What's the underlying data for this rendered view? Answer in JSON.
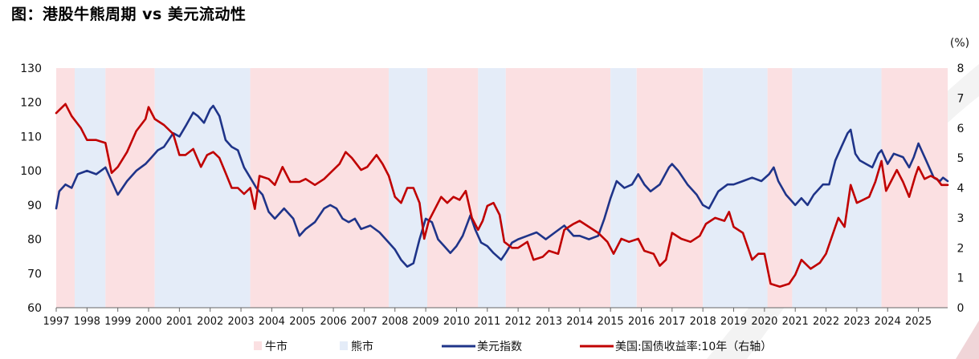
{
  "title": "图：港股牛熊周期 vs 美元流动性",
  "chart_data": {
    "type": "line",
    "right_unit": "(%)",
    "x_ticks": [
      "1997",
      "1998",
      "1999",
      "2000",
      "2001",
      "2002",
      "2003",
      "2004",
      "2005",
      "2006",
      "2007",
      "2008",
      "2009",
      "2010",
      "2011",
      "2012",
      "2013",
      "2014",
      "2015",
      "2016",
      "2017",
      "2018",
      "2019",
      "2020",
      "2021",
      "2022",
      "2023",
      "2024",
      "2025"
    ],
    "x_range": [
      1997.0,
      2025.95
    ],
    "left_axis": {
      "ticks": [
        60,
        70,
        80,
        90,
        100,
        110,
        120,
        130
      ],
      "range": [
        60,
        130
      ]
    },
    "right_axis": {
      "ticks": [
        0,
        1,
        2,
        3,
        4,
        5,
        6,
        7,
        8
      ],
      "range": [
        0,
        8
      ]
    },
    "regimes": [
      {
        "kind": "bull",
        "start": 1997.0,
        "end": 1997.6
      },
      {
        "kind": "bear",
        "start": 1997.6,
        "end": 1998.6
      },
      {
        "kind": "bull",
        "start": 1998.6,
        "end": 2000.2
      },
      {
        "kind": "bear",
        "start": 2000.2,
        "end": 2003.3
      },
      {
        "kind": "bull",
        "start": 2003.3,
        "end": 2007.8
      },
      {
        "kind": "bear",
        "start": 2007.8,
        "end": 2009.05
      },
      {
        "kind": "bull",
        "start": 2009.05,
        "end": 2010.7
      },
      {
        "kind": "bear",
        "start": 2010.7,
        "end": 2011.6
      },
      {
        "kind": "bull",
        "start": 2011.6,
        "end": 2015.0
      },
      {
        "kind": "bear",
        "start": 2015.0,
        "end": 2015.85
      },
      {
        "kind": "bull",
        "start": 2015.85,
        "end": 2018.0
      },
      {
        "kind": "bear",
        "start": 2018.0,
        "end": 2020.1
      },
      {
        "kind": "bull",
        "start": 2020.1,
        "end": 2020.9
      },
      {
        "kind": "bear",
        "start": 2020.9,
        "end": 2023.8
      },
      {
        "kind": "bull",
        "start": 2023.8,
        "end": 2025.95
      }
    ],
    "series": [
      {
        "name": "美元指数",
        "axis": "left",
        "color": "#1f3489",
        "points": [
          [
            1997.0,
            89
          ],
          [
            1997.1,
            94
          ],
          [
            1997.3,
            96
          ],
          [
            1997.5,
            95
          ],
          [
            1997.7,
            99
          ],
          [
            1998.0,
            100
          ],
          [
            1998.3,
            99
          ],
          [
            1998.6,
            101
          ],
          [
            1998.8,
            97
          ],
          [
            1999.0,
            93
          ],
          [
            1999.3,
            97
          ],
          [
            1999.6,
            100
          ],
          [
            1999.9,
            102
          ],
          [
            2000.1,
            104
          ],
          [
            2000.3,
            106
          ],
          [
            2000.5,
            107
          ],
          [
            2000.8,
            111
          ],
          [
            2001.0,
            110
          ],
          [
            2001.2,
            113
          ],
          [
            2001.45,
            117
          ],
          [
            2001.6,
            116
          ],
          [
            2001.8,
            114
          ],
          [
            2002.0,
            118
          ],
          [
            2002.1,
            119
          ],
          [
            2002.3,
            116
          ],
          [
            2002.5,
            109
          ],
          [
            2002.7,
            107
          ],
          [
            2002.9,
            106
          ],
          [
            2003.1,
            101
          ],
          [
            2003.3,
            98
          ],
          [
            2003.5,
            95
          ],
          [
            2003.7,
            93
          ],
          [
            2003.9,
            88
          ],
          [
            2004.1,
            86
          ],
          [
            2004.4,
            89
          ],
          [
            2004.7,
            86
          ],
          [
            2004.9,
            81
          ],
          [
            2005.1,
            83
          ],
          [
            2005.4,
            85
          ],
          [
            2005.7,
            89
          ],
          [
            2005.9,
            90
          ],
          [
            2006.1,
            89
          ],
          [
            2006.3,
            86
          ],
          [
            2006.5,
            85
          ],
          [
            2006.7,
            86
          ],
          [
            2006.9,
            83
          ],
          [
            2007.2,
            84
          ],
          [
            2007.5,
            82
          ],
          [
            2007.8,
            79
          ],
          [
            2008.0,
            77
          ],
          [
            2008.2,
            74
          ],
          [
            2008.4,
            72
          ],
          [
            2008.6,
            73
          ],
          [
            2008.8,
            80
          ],
          [
            2009.0,
            86
          ],
          [
            2009.2,
            85
          ],
          [
            2009.4,
            80
          ],
          [
            2009.6,
            78
          ],
          [
            2009.8,
            76
          ],
          [
            2010.0,
            78
          ],
          [
            2010.2,
            81
          ],
          [
            2010.45,
            87
          ],
          [
            2010.6,
            83
          ],
          [
            2010.8,
            79
          ],
          [
            2011.0,
            78
          ],
          [
            2011.2,
            76
          ],
          [
            2011.45,
            74
          ],
          [
            2011.6,
            76
          ],
          [
            2011.8,
            79
          ],
          [
            2012.0,
            80
          ],
          [
            2012.3,
            81
          ],
          [
            2012.6,
            82
          ],
          [
            2012.9,
            80
          ],
          [
            2013.2,
            82
          ],
          [
            2013.5,
            84
          ],
          [
            2013.8,
            81
          ],
          [
            2014.0,
            81
          ],
          [
            2014.3,
            80
          ],
          [
            2014.6,
            81
          ],
          [
            2014.8,
            86
          ],
          [
            2015.0,
            92
          ],
          [
            2015.2,
            97
          ],
          [
            2015.45,
            95
          ],
          [
            2015.7,
            96
          ],
          [
            2015.9,
            99
          ],
          [
            2016.1,
            96
          ],
          [
            2016.3,
            94
          ],
          [
            2016.6,
            96
          ],
          [
            2016.9,
            101
          ],
          [
            2017.0,
            102
          ],
          [
            2017.2,
            100
          ],
          [
            2017.5,
            96
          ],
          [
            2017.8,
            93
          ],
          [
            2018.0,
            90
          ],
          [
            2018.2,
            89
          ],
          [
            2018.5,
            94
          ],
          [
            2018.8,
            96
          ],
          [
            2019.0,
            96
          ],
          [
            2019.3,
            97
          ],
          [
            2019.6,
            98
          ],
          [
            2019.9,
            97
          ],
          [
            2020.15,
            99
          ],
          [
            2020.3,
            101
          ],
          [
            2020.45,
            97
          ],
          [
            2020.7,
            93
          ],
          [
            2020.9,
            91
          ],
          [
            2021.0,
            90
          ],
          [
            2021.2,
            92
          ],
          [
            2021.4,
            90
          ],
          [
            2021.6,
            93
          ],
          [
            2021.9,
            96
          ],
          [
            2022.1,
            96
          ],
          [
            2022.3,
            103
          ],
          [
            2022.5,
            107
          ],
          [
            2022.7,
            111
          ],
          [
            2022.8,
            112
          ],
          [
            2022.95,
            105
          ],
          [
            2023.1,
            103
          ],
          [
            2023.3,
            102
          ],
          [
            2023.5,
            101
          ],
          [
            2023.7,
            105
          ],
          [
            2023.8,
            106
          ],
          [
            2024.0,
            102
          ],
          [
            2024.2,
            105
          ],
          [
            2024.5,
            104
          ],
          [
            2024.7,
            101
          ],
          [
            2024.85,
            104
          ],
          [
            2025.0,
            108
          ],
          [
            2025.1,
            106
          ],
          [
            2025.25,
            103
          ],
          [
            2025.5,
            98
          ],
          [
            2025.7,
            97
          ],
          [
            2025.8,
            98
          ],
          [
            2025.95,
            97
          ]
        ]
      },
      {
        "name": "美国:国债收益率:10年（右轴）",
        "axis": "right",
        "color": "#c00000",
        "points": [
          [
            1997.0,
            6.5
          ],
          [
            1997.1,
            6.6
          ],
          [
            1997.3,
            6.8
          ],
          [
            1997.5,
            6.4
          ],
          [
            1997.8,
            6.0
          ],
          [
            1998.0,
            5.6
          ],
          [
            1998.3,
            5.6
          ],
          [
            1998.6,
            5.5
          ],
          [
            1998.8,
            4.5
          ],
          [
            1999.0,
            4.7
          ],
          [
            1999.3,
            5.2
          ],
          [
            1999.6,
            5.9
          ],
          [
            1999.9,
            6.3
          ],
          [
            2000.0,
            6.7
          ],
          [
            2000.2,
            6.3
          ],
          [
            2000.5,
            6.1
          ],
          [
            2000.8,
            5.8
          ],
          [
            2001.0,
            5.1
          ],
          [
            2001.2,
            5.1
          ],
          [
            2001.45,
            5.3
          ],
          [
            2001.7,
            4.7
          ],
          [
            2001.9,
            5.1
          ],
          [
            2002.1,
            5.2
          ],
          [
            2002.3,
            5.0
          ],
          [
            2002.5,
            4.5
          ],
          [
            2002.7,
            4.0
          ],
          [
            2002.9,
            4.0
          ],
          [
            2003.1,
            3.8
          ],
          [
            2003.3,
            4.0
          ],
          [
            2003.45,
            3.3
          ],
          [
            2003.6,
            4.4
          ],
          [
            2003.9,
            4.3
          ],
          [
            2004.1,
            4.1
          ],
          [
            2004.35,
            4.7
          ],
          [
            2004.6,
            4.2
          ],
          [
            2004.9,
            4.2
          ],
          [
            2005.1,
            4.3
          ],
          [
            2005.4,
            4.1
          ],
          [
            2005.7,
            4.3
          ],
          [
            2005.9,
            4.5
          ],
          [
            2006.2,
            4.8
          ],
          [
            2006.4,
            5.2
          ],
          [
            2006.6,
            5.0
          ],
          [
            2006.9,
            4.6
          ],
          [
            2007.1,
            4.7
          ],
          [
            2007.4,
            5.1
          ],
          [
            2007.6,
            4.8
          ],
          [
            2007.8,
            4.4
          ],
          [
            2008.0,
            3.7
          ],
          [
            2008.2,
            3.5
          ],
          [
            2008.4,
            4.0
          ],
          [
            2008.6,
            4.0
          ],
          [
            2008.8,
            3.5
          ],
          [
            2008.95,
            2.3
          ],
          [
            2009.1,
            2.9
          ],
          [
            2009.3,
            3.3
          ],
          [
            2009.5,
            3.7
          ],
          [
            2009.7,
            3.5
          ],
          [
            2009.9,
            3.7
          ],
          [
            2010.1,
            3.6
          ],
          [
            2010.3,
            3.9
          ],
          [
            2010.5,
            3.0
          ],
          [
            2010.7,
            2.6
          ],
          [
            2010.85,
            2.9
          ],
          [
            2011.0,
            3.4
          ],
          [
            2011.2,
            3.5
          ],
          [
            2011.4,
            3.1
          ],
          [
            2011.55,
            2.2
          ],
          [
            2011.8,
            2.0
          ],
          [
            2012.0,
            2.0
          ],
          [
            2012.3,
            2.2
          ],
          [
            2012.5,
            1.6
          ],
          [
            2012.8,
            1.7
          ],
          [
            2013.0,
            1.9
          ],
          [
            2013.3,
            1.8
          ],
          [
            2013.5,
            2.6
          ],
          [
            2013.8,
            2.8
          ],
          [
            2014.0,
            2.9
          ],
          [
            2014.3,
            2.7
          ],
          [
            2014.6,
            2.5
          ],
          [
            2014.9,
            2.2
          ],
          [
            2015.1,
            1.8
          ],
          [
            2015.35,
            2.3
          ],
          [
            2015.6,
            2.2
          ],
          [
            2015.9,
            2.3
          ],
          [
            2016.1,
            1.9
          ],
          [
            2016.4,
            1.8
          ],
          [
            2016.6,
            1.4
          ],
          [
            2016.8,
            1.6
          ],
          [
            2017.0,
            2.5
          ],
          [
            2017.3,
            2.3
          ],
          [
            2017.6,
            2.2
          ],
          [
            2017.9,
            2.4
          ],
          [
            2018.1,
            2.8
          ],
          [
            2018.4,
            3.0
          ],
          [
            2018.7,
            2.9
          ],
          [
            2018.85,
            3.2
          ],
          [
            2019.0,
            2.7
          ],
          [
            2019.3,
            2.5
          ],
          [
            2019.6,
            1.6
          ],
          [
            2019.8,
            1.8
          ],
          [
            2020.0,
            1.8
          ],
          [
            2020.2,
            0.8
          ],
          [
            2020.5,
            0.7
          ],
          [
            2020.8,
            0.8
          ],
          [
            2021.0,
            1.1
          ],
          [
            2021.2,
            1.6
          ],
          [
            2021.5,
            1.3
          ],
          [
            2021.8,
            1.5
          ],
          [
            2022.0,
            1.8
          ],
          [
            2022.2,
            2.4
          ],
          [
            2022.4,
            3.0
          ],
          [
            2022.6,
            2.7
          ],
          [
            2022.8,
            4.1
          ],
          [
            2023.0,
            3.5
          ],
          [
            2023.2,
            3.6
          ],
          [
            2023.4,
            3.7
          ],
          [
            2023.6,
            4.2
          ],
          [
            2023.8,
            4.9
          ],
          [
            2023.95,
            3.9
          ],
          [
            2024.1,
            4.2
          ],
          [
            2024.3,
            4.6
          ],
          [
            2024.5,
            4.2
          ],
          [
            2024.7,
            3.7
          ],
          [
            2024.9,
            4.4
          ],
          [
            2025.0,
            4.7
          ],
          [
            2025.2,
            4.3
          ],
          [
            2025.4,
            4.4
          ],
          [
            2025.6,
            4.3
          ],
          [
            2025.75,
            4.1
          ],
          [
            2025.95,
            4.1
          ]
        ]
      }
    ],
    "legend": {
      "placement": "bottom",
      "items": [
        {
          "label": "牛市",
          "swatch": "bull"
        },
        {
          "label": "熊市",
          "swatch": "bear"
        },
        {
          "label": "美元指数",
          "swatch": "line-blue"
        },
        {
          "label": "美国:国债收益率:10年（右轴）",
          "swatch": "line-red"
        }
      ]
    },
    "colors": {
      "bull": "#fbe0e2",
      "bear": "#e4ecf8",
      "line_blue": "#1f3489",
      "line_red": "#c00000"
    }
  }
}
